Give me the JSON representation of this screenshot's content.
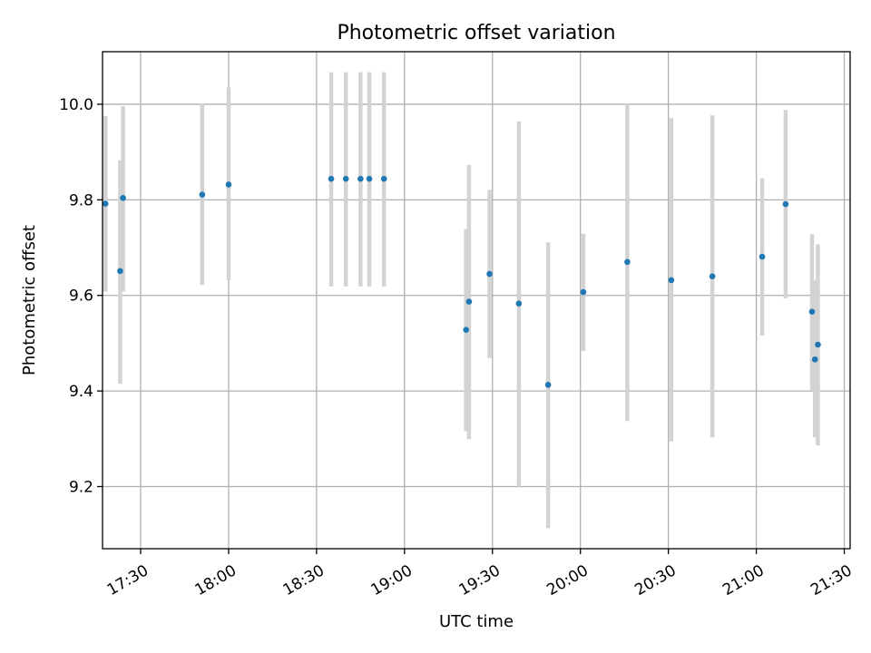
{
  "chart_data": {
    "type": "scatter",
    "title": "Photometric offset variation",
    "xlabel": "UTC time",
    "ylabel": "Photometric offset",
    "grid": true,
    "xlim": [
      "17:17",
      "21:32"
    ],
    "ylim": [
      9.07,
      10.11
    ],
    "x_ticks": [
      "17:30",
      "18:00",
      "18:30",
      "19:00",
      "19:30",
      "20:00",
      "20:30",
      "21:00",
      "21:30"
    ],
    "y_ticks": [
      9.2,
      9.4,
      9.6,
      9.8,
      10.0
    ],
    "y_tick_labels": [
      "9.2",
      "9.4",
      "9.6",
      "9.8",
      "10.0"
    ],
    "x_tick_rotation": 30,
    "colors": {
      "point": "#1f77b4",
      "errorbar": "#d3d3d3",
      "grid": "#b0b0b0"
    },
    "points": [
      {
        "x": "17:18",
        "y": 9.792,
        "ylow": 9.608,
        "yhigh": 9.975
      },
      {
        "x": "17:23",
        "y": 9.651,
        "ylow": 9.415,
        "yhigh": 9.883
      },
      {
        "x": "17:24",
        "y": 9.804,
        "ylow": 9.608,
        "yhigh": 9.996
      },
      {
        "x": "17:51",
        "y": 9.811,
        "ylow": 9.622,
        "yhigh": 10.002
      },
      {
        "x": "18:00",
        "y": 9.832,
        "ylow": 9.632,
        "yhigh": 10.035
      },
      {
        "x": "18:35",
        "y": 9.844,
        "ylow": 9.619,
        "yhigh": 10.067
      },
      {
        "x": "18:40",
        "y": 9.844,
        "ylow": 9.619,
        "yhigh": 10.067
      },
      {
        "x": "18:45",
        "y": 9.844,
        "ylow": 9.619,
        "yhigh": 10.067
      },
      {
        "x": "18:48",
        "y": 9.844,
        "ylow": 9.619,
        "yhigh": 10.067
      },
      {
        "x": "18:53",
        "y": 9.844,
        "ylow": 9.619,
        "yhigh": 10.067
      },
      {
        "x": "19:21",
        "y": 9.528,
        "ylow": 9.316,
        "yhigh": 9.739
      },
      {
        "x": "19:22",
        "y": 9.587,
        "ylow": 9.299,
        "yhigh": 9.873
      },
      {
        "x": "19:29",
        "y": 9.645,
        "ylow": 9.469,
        "yhigh": 9.821
      },
      {
        "x": "19:39",
        "y": 9.583,
        "ylow": 9.2,
        "yhigh": 9.964
      },
      {
        "x": "19:49",
        "y": 9.413,
        "ylow": 9.113,
        "yhigh": 9.711
      },
      {
        "x": "20:01",
        "y": 9.607,
        "ylow": 9.484,
        "yhigh": 9.729
      },
      {
        "x": "20:16",
        "y": 9.67,
        "ylow": 9.337,
        "yhigh": 10.002
      },
      {
        "x": "20:31",
        "y": 9.632,
        "ylow": 9.295,
        "yhigh": 9.971
      },
      {
        "x": "20:45",
        "y": 9.64,
        "ylow": 9.303,
        "yhigh": 9.977
      },
      {
        "x": "21:02",
        "y": 9.681,
        "ylow": 9.516,
        "yhigh": 9.845
      },
      {
        "x": "21:10",
        "y": 9.791,
        "ylow": 9.594,
        "yhigh": 9.988
      },
      {
        "x": "21:19",
        "y": 9.566,
        "ylow": 9.402,
        "yhigh": 9.728
      },
      {
        "x": "21:20",
        "y": 9.466,
        "ylow": 9.303,
        "yhigh": 9.632
      },
      {
        "x": "21:21",
        "y": 9.497,
        "ylow": 9.286,
        "yhigh": 9.707
      }
    ]
  }
}
